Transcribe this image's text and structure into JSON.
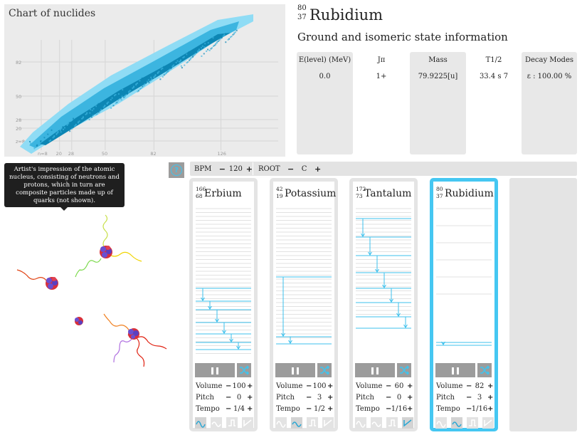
{
  "chart": {
    "title": "Chart of nuclides",
    "y_ticks": [
      {
        "label": "z=8",
        "value": 8
      },
      {
        "label": "20",
        "value": 20
      },
      {
        "label": "28",
        "value": 28
      },
      {
        "label": "50",
        "value": 50
      },
      {
        "label": "82",
        "value": 82
      }
    ],
    "x_ticks": [
      {
        "label": "n=8",
        "value": 8
      },
      {
        "label": "20",
        "value": 20
      },
      {
        "label": "28",
        "value": 28
      },
      {
        "label": "50",
        "value": 50
      },
      {
        "label": "82",
        "value": 82
      },
      {
        "label": "126",
        "value": 126
      }
    ],
    "colors": {
      "light": "#8fdcf5",
      "mid": "#3cb5e0",
      "dark": "#0d86b4"
    }
  },
  "header": {
    "mass_number": "80",
    "atomic_number": "37",
    "element": "Rubidium",
    "subtitle": "Ground and isomeric state information"
  },
  "info_table": {
    "columns": [
      {
        "header": "E(level) (MeV)",
        "value": "0.0"
      },
      {
        "header": "Jπ",
        "value": "1+"
      },
      {
        "header": "Mass",
        "value": "79.9225[u]"
      },
      {
        "header": "T1/2",
        "value": "33.4 s 7"
      },
      {
        "header": "Decay Modes",
        "value": "ε : 100.00 %"
      }
    ]
  },
  "help": {
    "icon_label": "?"
  },
  "tooltip": {
    "text": "Artist's impression of the atomic nucleus, consisting of neutrons and protons, which in turn are composite particles made up of quarks (not shown)."
  },
  "controls": {
    "bpm_label": "BPM",
    "bpm_minus": "−",
    "bpm_value": "120",
    "bpm_plus": "+",
    "root_label": "ROOT",
    "root_minus": "−",
    "root_value": "C",
    "root_plus": "+"
  },
  "cards": [
    {
      "mass": "166",
      "z": "68",
      "name": "Erbium",
      "volume": "100",
      "pitch": "0",
      "tempo": "1/4",
      "selected_wave": 0
    },
    {
      "mass": "42",
      "z": "19",
      "name": "Potassium",
      "volume": "100",
      "pitch": "3",
      "tempo": "1/2",
      "selected_wave": 1
    },
    {
      "mass": "172",
      "z": "73",
      "name": "Tantalum",
      "volume": "60",
      "pitch": "0",
      "tempo": "1/16",
      "selected_wave": 3
    },
    {
      "mass": "80",
      "z": "37",
      "name": "Rubidium",
      "volume": "82",
      "pitch": "3",
      "tempo": "1/16",
      "selected_wave": 1
    }
  ],
  "card_labels": {
    "volume": "Volume",
    "pitch": "Pitch",
    "tempo": "Tempo",
    "minus": "−",
    "plus": "+"
  },
  "card_icons": {
    "play": "pause-icon",
    "shuffle": "shuffle-icon",
    "waves": [
      "sine-wave-icon",
      "triangle-wave-icon",
      "square-wave-icon",
      "sawtooth-wave-icon"
    ]
  },
  "colors": {
    "accent": "#45c7f2",
    "button_gray": "#9c9c9c",
    "panel_gray": "#e4e4e4"
  }
}
